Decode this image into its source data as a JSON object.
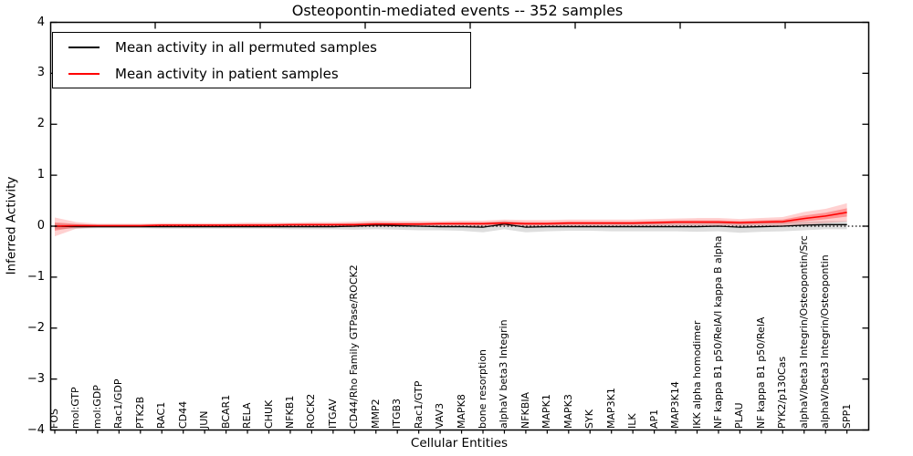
{
  "title": "Osteopontin-mediated events -- 352 samples",
  "chart_data": {
    "type": "line",
    "title": "Osteopontin-mediated events -- 352 samples",
    "xlabel": "Cellular Entities",
    "ylabel": "Inferred Activity",
    "ylim": [
      -4,
      4
    ],
    "ytick_labels": [
      "4",
      "3",
      "2",
      "1",
      "0",
      "−1",
      "−2",
      "−3",
      "−4"
    ],
    "yticks": [
      4,
      3,
      2,
      1,
      0,
      -1,
      -2,
      -3,
      -4
    ],
    "grid": false,
    "zero_line_style": "dotted",
    "legend_position": "upper-left",
    "categories": [
      "FOS",
      "mol:GTP",
      "mol:GDP",
      "Rac1/GDP",
      "PTK2B",
      "RAC1",
      "CD44",
      "JUN",
      "BCAR1",
      "RELA",
      "CHUK",
      "NFKB1",
      "ROCK2",
      "ITGAV",
      "CD44/Rho Family GTPase/ROCK2",
      "MMP2",
      "ITGB3",
      "Rac1/GTP",
      "VAV3",
      "MAPK8",
      "bone resorption",
      "alphaV beta3 Integrin",
      "NFKBIA",
      "MAPK1",
      "MAPK3",
      "SYK",
      "MAP3K1",
      "ILK",
      "AP1",
      "MAP3K14",
      "IKK alpha homodimer",
      "NF kappa B1 p50/RelA/I kappa B alpha",
      "PLAU",
      "NF kappa B1 p50/RelA",
      "PYK2/p130Cas",
      "alphaV/beta3 Integrin/Osteopontin/Src",
      "alphaV/beta3 Integrin/Osteopontin",
      "SPP1"
    ],
    "series": [
      {
        "name": "Mean activity in all permuted samples",
        "color": "#000000",
        "band_color": "rgba(0,0,0,0.13)",
        "values": [
          0.0,
          -0.01,
          -0.01,
          -0.01,
          -0.01,
          -0.01,
          -0.01,
          -0.01,
          -0.01,
          -0.01,
          -0.01,
          -0.01,
          -0.01,
          -0.01,
          0.0,
          0.02,
          0.01,
          0.0,
          -0.01,
          -0.01,
          -0.02,
          0.04,
          -0.02,
          -0.01,
          -0.01,
          -0.01,
          -0.01,
          -0.01,
          -0.01,
          -0.01,
          -0.01,
          0.0,
          -0.02,
          -0.01,
          0.0,
          0.02,
          0.03,
          0.03
        ],
        "band_low": [
          -0.06,
          -0.05,
          -0.04,
          -0.04,
          -0.04,
          -0.05,
          -0.05,
          -0.05,
          -0.05,
          -0.05,
          -0.05,
          -0.06,
          -0.06,
          -0.06,
          -0.07,
          -0.06,
          -0.07,
          -0.08,
          -0.08,
          -0.09,
          -0.12,
          -0.06,
          -0.12,
          -0.1,
          -0.09,
          -0.09,
          -0.1,
          -0.1,
          -0.1,
          -0.1,
          -0.11,
          -0.1,
          -0.13,
          -0.11,
          -0.1,
          -0.08,
          -0.06,
          -0.06
        ],
        "band_high": [
          0.05,
          0.04,
          0.03,
          0.03,
          0.03,
          0.03,
          0.03,
          0.03,
          0.04,
          0.04,
          0.04,
          0.04,
          0.04,
          0.04,
          0.05,
          0.07,
          0.06,
          0.06,
          0.05,
          0.05,
          0.06,
          0.1,
          0.06,
          0.06,
          0.06,
          0.06,
          0.06,
          0.06,
          0.06,
          0.06,
          0.06,
          0.07,
          0.07,
          0.07,
          0.08,
          0.09,
          0.1,
          0.1
        ]
      },
      {
        "name": "Mean activity in patient samples",
        "color": "#ff0000",
        "band_color": "rgba(255,0,0,0.18)",
        "inner_band_color": "rgba(255,0,0,0.30)",
        "values": [
          0.0,
          0.01,
          0.01,
          0.01,
          0.01,
          0.02,
          0.02,
          0.02,
          0.02,
          0.02,
          0.02,
          0.03,
          0.03,
          0.03,
          0.03,
          0.04,
          0.04,
          0.04,
          0.05,
          0.05,
          0.05,
          0.06,
          0.05,
          0.05,
          0.06,
          0.06,
          0.06,
          0.06,
          0.07,
          0.08,
          0.08,
          0.08,
          0.07,
          0.08,
          0.09,
          0.15,
          0.2,
          0.27
        ],
        "band_low": [
          -0.2,
          -0.05,
          -0.02,
          -0.02,
          -0.02,
          -0.02,
          -0.02,
          -0.02,
          -0.02,
          -0.02,
          -0.02,
          -0.02,
          -0.02,
          -0.02,
          -0.02,
          -0.01,
          -0.01,
          -0.01,
          -0.01,
          -0.01,
          -0.01,
          0.0,
          -0.01,
          -0.01,
          0.0,
          0.0,
          0.0,
          0.0,
          0.0,
          0.01,
          0.01,
          0.01,
          0.0,
          0.01,
          0.01,
          0.03,
          0.06,
          0.09
        ],
        "band_high": [
          0.17,
          0.08,
          0.05,
          0.05,
          0.05,
          0.06,
          0.06,
          0.06,
          0.06,
          0.07,
          0.07,
          0.07,
          0.08,
          0.08,
          0.09,
          0.11,
          0.1,
          0.1,
          0.1,
          0.11,
          0.11,
          0.13,
          0.12,
          0.12,
          0.13,
          0.13,
          0.13,
          0.13,
          0.14,
          0.15,
          0.16,
          0.16,
          0.14,
          0.16,
          0.18,
          0.28,
          0.34,
          0.45
        ]
      }
    ]
  },
  "legend": {
    "entries": [
      {
        "label": "Mean activity in all permuted samples",
        "color": "#000000"
      },
      {
        "label": "Mean activity in patient samples",
        "color": "#ff0000"
      }
    ]
  }
}
